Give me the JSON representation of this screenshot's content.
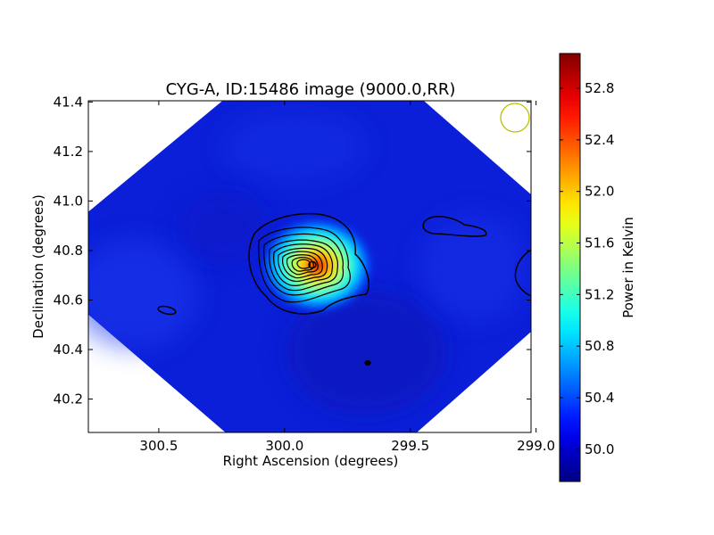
{
  "chart_data": {
    "type": "heatmap",
    "title": "CYG-A, ID:15486 image (9000.0,RR)",
    "xlabel": "Right Ascension (degrees)",
    "ylabel": "Declination (degrees)",
    "xlim": [
      300.78,
      299.02
    ],
    "ylim": [
      40.065,
      41.405
    ],
    "x_ticks": [
      300.5,
      300.0,
      299.5,
      299.0
    ],
    "x_tick_labels": [
      "300.5",
      "300.0",
      "299.5",
      "299.0"
    ],
    "y_ticks": [
      40.2,
      40.4,
      40.6,
      40.8,
      41.0,
      41.2,
      41.4
    ],
    "y_tick_labels": [
      "40.2",
      "40.4",
      "40.6",
      "40.8",
      "41.0",
      "41.2",
      "41.4"
    ],
    "colorbar": {
      "label": "Power in Kelvin",
      "min": 49.75,
      "max": 53.07,
      "ticks": [
        50.0,
        50.4,
        50.8,
        51.2,
        51.6,
        52.0,
        52.4,
        52.8
      ],
      "tick_labels": [
        "50.0",
        "50.4",
        "50.8",
        "51.2",
        "51.6",
        "52.0",
        "52.4",
        "52.8"
      ],
      "colormap": "jet"
    },
    "source": {
      "ra": 299.87,
      "dec": 40.74,
      "peak": 53.0,
      "background": 50.2
    },
    "beam_marker_color": "#bfbf00",
    "grid": false,
    "legend": "none"
  }
}
